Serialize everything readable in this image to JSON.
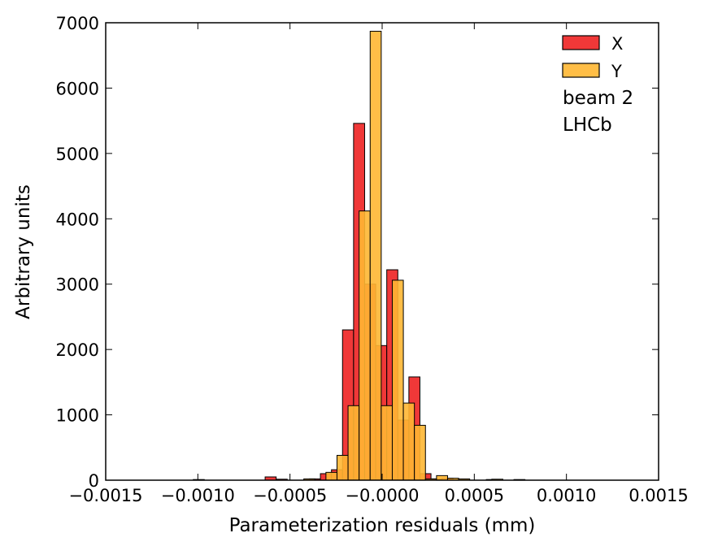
{
  "chart_data": {
    "type": "histogram",
    "xlabel": "Parameterization residuals (mm)",
    "ylabel": "Arbitrary units",
    "xlim": [
      -0.0015,
      0.0015
    ],
    "ylim": [
      0,
      7000
    ],
    "x_tick_labels": [
      "−0.0015",
      "−0.0010",
      "−0.0005",
      "−0.0000",
      "0.0005",
      "0.0010",
      "0.0015"
    ],
    "y_tick_labels": [
      "0",
      "1000",
      "2000",
      "3000",
      "4000",
      "5000",
      "6000",
      "7000"
    ],
    "grid": false,
    "legend_position": "top-right",
    "annotations": [
      "beam 2",
      "LHCb"
    ],
    "series": [
      {
        "name": "X",
        "color": "#ee2222",
        "bins": [
          {
            "x": -0.000605,
            "y": 50
          },
          {
            "x": -0.000545,
            "y": 15
          },
          {
            "x": -0.000365,
            "y": 20
          },
          {
            "x": -0.000305,
            "y": 100
          },
          {
            "x": -0.000245,
            "y": 160
          },
          {
            "x": -0.000185,
            "y": 2300
          },
          {
            "x": -0.000125,
            "y": 5460
          },
          {
            "x": -6.5e-05,
            "y": 3000
          },
          {
            "x": -5e-06,
            "y": 2060
          },
          {
            "x": 5.5e-05,
            "y": 3220
          },
          {
            "x": 0.000115,
            "y": 920
          },
          {
            "x": 0.000175,
            "y": 1580
          },
          {
            "x": 0.000235,
            "y": 100
          },
          {
            "x": 0.000295,
            "y": 20
          },
          {
            "x": 0.000355,
            "y": 30
          },
          {
            "x": 0.000595,
            "y": 10
          }
        ]
      },
      {
        "name": "Y",
        "color": "#ffb733",
        "bins": [
          {
            "x": -0.000995,
            "y": 10
          },
          {
            "x": -0.000395,
            "y": 20
          },
          {
            "x": -0.000275,
            "y": 120
          },
          {
            "x": -0.000215,
            "y": 380
          },
          {
            "x": -0.000155,
            "y": 1140
          },
          {
            "x": -9.5e-05,
            "y": 4120
          },
          {
            "x": -3.5e-05,
            "y": 6870
          },
          {
            "x": 2.5e-05,
            "y": 1140
          },
          {
            "x": 8.5e-05,
            "y": 3060
          },
          {
            "x": 0.000145,
            "y": 1180
          },
          {
            "x": 0.000205,
            "y": 840
          },
          {
            "x": 0.000265,
            "y": 20
          },
          {
            "x": 0.000325,
            "y": 70
          },
          {
            "x": 0.000385,
            "y": 30
          },
          {
            "x": 0.000445,
            "y": 20
          },
          {
            "x": 0.000625,
            "y": 15
          },
          {
            "x": 0.000745,
            "y": 10
          }
        ]
      }
    ]
  }
}
